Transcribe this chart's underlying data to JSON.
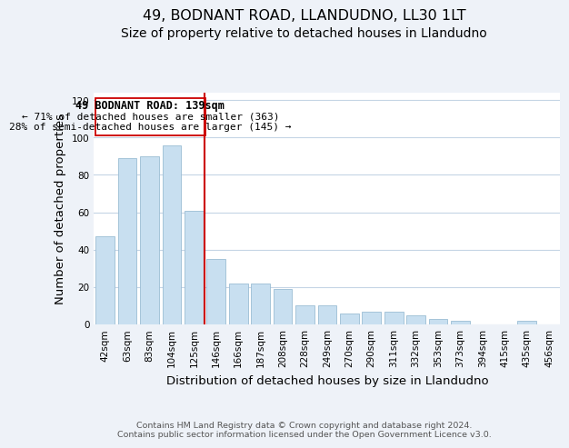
{
  "title": "49, BODNANT ROAD, LLANDUDNO, LL30 1LT",
  "subtitle": "Size of property relative to detached houses in Llandudno",
  "xlabel": "Distribution of detached houses by size in Llandudno",
  "ylabel": "Number of detached properties",
  "bar_labels": [
    "42sqm",
    "63sqm",
    "83sqm",
    "104sqm",
    "125sqm",
    "146sqm",
    "166sqm",
    "187sqm",
    "208sqm",
    "228sqm",
    "249sqm",
    "270sqm",
    "290sqm",
    "311sqm",
    "332sqm",
    "353sqm",
    "373sqm",
    "394sqm",
    "415sqm",
    "435sqm",
    "456sqm"
  ],
  "bar_values": [
    47,
    89,
    90,
    96,
    61,
    35,
    22,
    22,
    19,
    10,
    10,
    6,
    7,
    7,
    5,
    3,
    2,
    0,
    0,
    2,
    0
  ],
  "bar_color": "#c8dff0",
  "bar_edge_color": "#9bbdd4",
  "vline_color": "#cc0000",
  "annotation_line1": "49 BODNANT ROAD: 139sqm",
  "annotation_line2": "← 71% of detached houses are smaller (363)",
  "annotation_line3": "28% of semi-detached houses are larger (145) →",
  "yticks": [
    0,
    20,
    40,
    60,
    80,
    100,
    120
  ],
  "footer_line1": "Contains HM Land Registry data © Crown copyright and database right 2024.",
  "footer_line2": "Contains public sector information licensed under the Open Government Licence v3.0.",
  "title_fontsize": 11.5,
  "subtitle_fontsize": 10,
  "axis_label_fontsize": 9.5,
  "tick_fontsize": 7.5,
  "annotation_fontsize": 8.5,
  "footer_fontsize": 6.8,
  "bg_color": "#eef2f8",
  "plot_bg_color": "#ffffff",
  "grid_color": "#c5d5e5"
}
